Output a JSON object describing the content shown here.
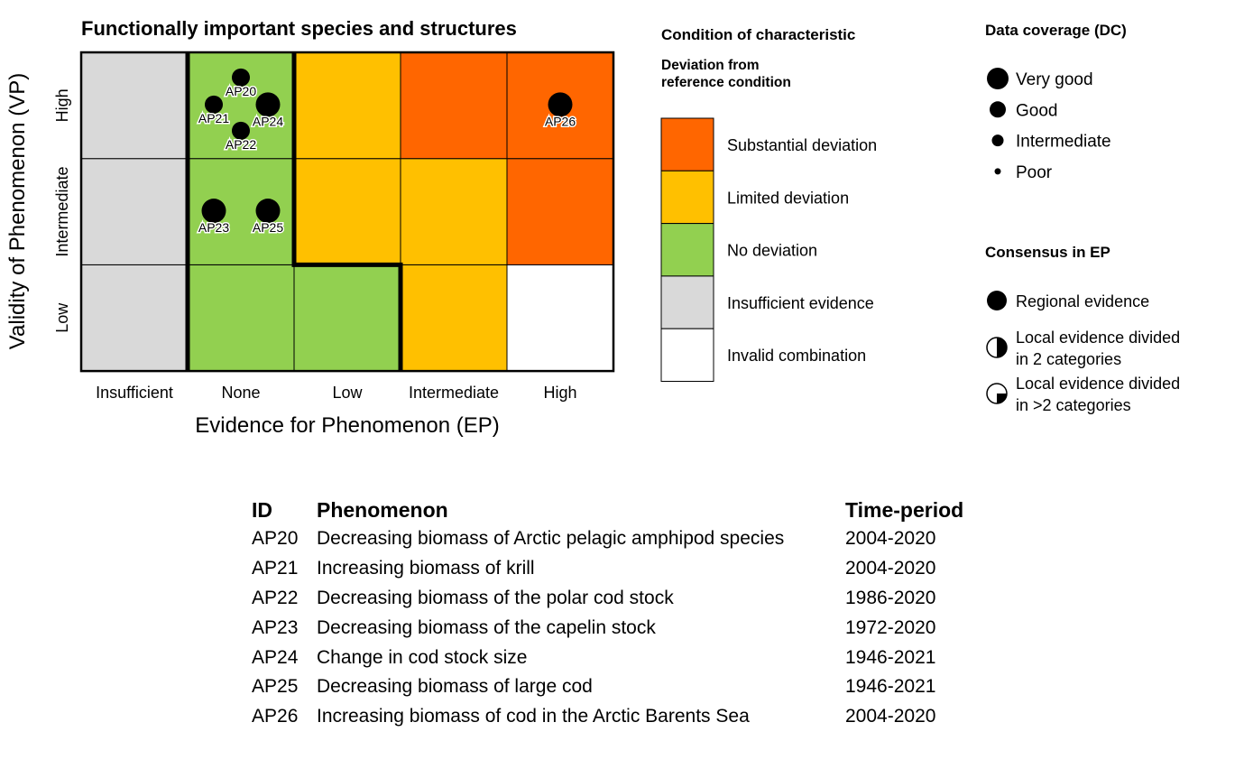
{
  "chart_data": {
    "type": "heatmap",
    "title": "Functionally important species and structures",
    "xlabel": "Evidence for Phenomenon (EP)",
    "ylabel": "Validity of Phenomenon (VP)",
    "x_categories": [
      "Insufficient",
      "None",
      "Low",
      "Intermediate",
      "High"
    ],
    "y_categories": [
      "Low",
      "Intermediate",
      "High"
    ],
    "cells": [
      [
        "insufficient",
        "none",
        "none",
        "limited",
        "invalid"
      ],
      [
        "insufficient",
        "none",
        "limited",
        "limited",
        "substantial"
      ],
      [
        "insufficient",
        "none",
        "limited",
        "substantial",
        "substantial"
      ]
    ],
    "points": [
      {
        "id": "AP20",
        "ep": "None",
        "vp": "High",
        "dc": "Good",
        "consensus": "Regional evidence"
      },
      {
        "id": "AP21",
        "ep": "None",
        "vp": "High",
        "dc": "Good",
        "consensus": "Regional evidence"
      },
      {
        "id": "AP22",
        "ep": "None",
        "vp": "High",
        "dc": "Good",
        "consensus": "Regional evidence"
      },
      {
        "id": "AP24",
        "ep": "None",
        "vp": "High",
        "dc": "Very good",
        "consensus": "Regional evidence"
      },
      {
        "id": "AP23",
        "ep": "None",
        "vp": "Intermediate",
        "dc": "Very good",
        "consensus": "Regional evidence"
      },
      {
        "id": "AP25",
        "ep": "None",
        "vp": "Intermediate",
        "dc": "Very good",
        "consensus": "Regional evidence"
      },
      {
        "id": "AP26",
        "ep": "High",
        "vp": "High",
        "dc": "Very good",
        "consensus": "Regional evidence"
      }
    ],
    "grid": true
  },
  "legend_condition": {
    "title": "Condition of characteristic",
    "subtitle_line1": "Deviation from",
    "subtitle_line2": "reference condition",
    "items": [
      {
        "key": "substantial",
        "label": "Substantial deviation",
        "color": "#FF6600"
      },
      {
        "key": "limited",
        "label": "Limited deviation",
        "color": "#FFC000"
      },
      {
        "key": "none",
        "label": "No deviation",
        "color": "#92D050"
      },
      {
        "key": "insufficient",
        "label": "Insufficient evidence",
        "color": "#D9D9D9"
      },
      {
        "key": "invalid",
        "label": "Invalid combination",
        "color": "#FFFFFF"
      }
    ]
  },
  "legend_dc": {
    "title": "Data coverage (DC)",
    "items": [
      "Very good",
      "Good",
      "Intermediate",
      "Poor"
    ]
  },
  "legend_consensus": {
    "title": "Consensus in EP",
    "items": [
      {
        "line1": "Regional evidence",
        "line2": "",
        "icon": "full-circle"
      },
      {
        "line1": "Local evidence divided",
        "line2": "in 2 categories",
        "icon": "half-circle"
      },
      {
        "line1": "Local evidence divided",
        "line2": "in >2 categories",
        "icon": "three-quarter-circle"
      }
    ]
  },
  "table": {
    "headers": [
      "ID",
      "Phenomenon",
      "Time-period"
    ],
    "rows": [
      [
        "AP20",
        "Decreasing biomass of Arctic pelagic amphipod species",
        "2004-2020"
      ],
      [
        "AP21",
        "Increasing biomass of krill",
        "2004-2020"
      ],
      [
        "AP22",
        "Decreasing biomass of the polar cod stock",
        "1986-2020"
      ],
      [
        "AP23",
        "Decreasing biomass of the capelin stock",
        "1972-2020"
      ],
      [
        "AP24",
        "Change in cod stock size",
        "1946-2021"
      ],
      [
        "AP25",
        "Decreasing biomass of large cod",
        "1946-2021"
      ],
      [
        "AP26",
        "Increasing biomass of cod in the Arctic Barents Sea",
        "2004-2020"
      ]
    ]
  }
}
